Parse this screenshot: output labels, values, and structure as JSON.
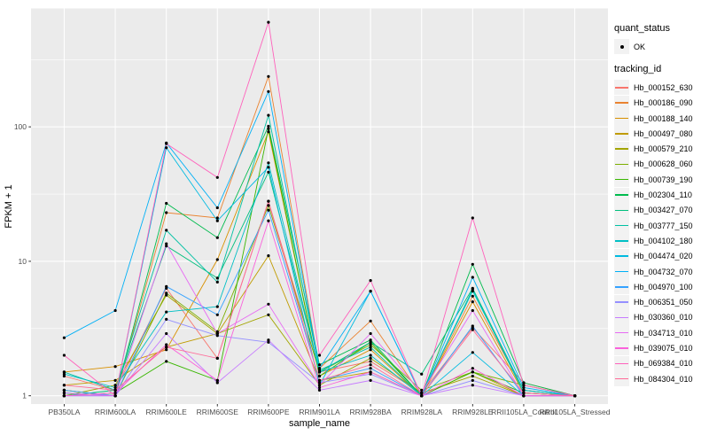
{
  "figure": {
    "background": "#FFFFFF",
    "panel_bg": "#EBEBEB",
    "grid_color": "#FFFFFF",
    "axis_text_color": "#4D4D4D",
    "tick_mark_color": "#333333",
    "legend_key_bg": "#F2F2F2",
    "point_color": "#000000"
  },
  "chart_data": {
    "type": "line",
    "title": "",
    "xlabel": "sample_name",
    "ylabel": "FPKM + 1",
    "y_scale": "log10",
    "grid": true,
    "legend_position": "right",
    "y_tick_labels": [
      "1",
      "10",
      "100"
    ],
    "y_tick_values": [
      1,
      10,
      100
    ],
    "y_minor_values": [
      3.1623,
      31.623,
      316.23
    ],
    "ylim": [
      0.868,
      760
    ],
    "categories": [
      "PB350LA",
      "RRIM600LA",
      "RRIM600LE",
      "RRIM600SE",
      "RRIM600PE",
      "RRIM901LA",
      "RRIM928BA",
      "RRIM928LA",
      "RRIM928LE",
      "RRII105LA_Control",
      "RRII105LA_Stressed"
    ],
    "legend": {
      "quant_status": {
        "title": "quant_status",
        "items": [
          {
            "label": "OK",
            "marker": "filled-point"
          }
        ]
      },
      "tracking_id": {
        "title": "tracking_id"
      }
    },
    "series": [
      {
        "name": "Hb_000152_630",
        "color": "#F8766D",
        "values": [
          1.4,
          1.1,
          6.3,
          1.9,
          28,
          1.5,
          1.8,
          1.05,
          3.2,
          1.25,
          1.0
        ]
      },
      {
        "name": "Hb_000186_090",
        "color": "#EA8331",
        "values": [
          1.1,
          1.0,
          23,
          21,
          237,
          1.6,
          3.6,
          1.0,
          5.5,
          1.1,
          1.0
        ]
      },
      {
        "name": "Hb_000188_140",
        "color": "#D89000",
        "values": [
          1.5,
          1.65,
          2.2,
          10.3,
          92,
          1.4,
          2.2,
          1.0,
          5.0,
          1.05,
          1.0
        ]
      },
      {
        "name": "Hb_000497_080",
        "color": "#C09B00",
        "values": [
          1.2,
          1.3,
          2.3,
          2.9,
          11,
          1.3,
          1.5,
          1.0,
          1.5,
          1.0,
          1.0
        ]
      },
      {
        "name": "Hb_000579_210",
        "color": "#A3A500",
        "values": [
          1.0,
          1.2,
          5.6,
          2.9,
          4.0,
          1.2,
          1.9,
          1.05,
          1.4,
          1.0,
          1.0
        ]
      },
      {
        "name": "Hb_000628_060",
        "color": "#7CAE00",
        "values": [
          1.1,
          1.0,
          5.8,
          3.0,
          26,
          1.5,
          2.4,
          1.1,
          1.5,
          1.2,
          1.0
        ]
      },
      {
        "name": "Hb_000739_190",
        "color": "#39B600",
        "values": [
          1.0,
          1.05,
          1.8,
          1.3,
          97,
          1.4,
          2.5,
          1.0,
          1.5,
          1.05,
          1.0
        ]
      },
      {
        "name": "Hb_002304_110",
        "color": "#00BB4E",
        "values": [
          1.05,
          1.0,
          27,
          15,
          101,
          1.7,
          2.6,
          1.0,
          9.5,
          1.25,
          1.0
        ]
      },
      {
        "name": "Hb_003427_070",
        "color": "#00BF7D",
        "values": [
          1.0,
          1.1,
          13,
          7.5,
          46,
          1.5,
          2.5,
          1.45,
          6.3,
          1.1,
          1.0
        ]
      },
      {
        "name": "Hb_003777_150",
        "color": "#00C1A3",
        "values": [
          1.5,
          1.1,
          17,
          7.0,
          122,
          1.55,
          2.3,
          1.0,
          6.2,
          1.05,
          1.0
        ]
      },
      {
        "name": "Hb_004102_180",
        "color": "#00BFC4",
        "values": [
          1.45,
          1.15,
          4.2,
          4.6,
          54,
          1.5,
          2.0,
          1.0,
          6.0,
          1.1,
          1.0
        ]
      },
      {
        "name": "Hb_004474_020",
        "color": "#00BAE0",
        "values": [
          1.0,
          1.0,
          70,
          20,
          50,
          1.2,
          6.0,
          1.0,
          2.1,
          1.0,
          1.0
        ]
      },
      {
        "name": "Hb_004732_070",
        "color": "#00B0F6",
        "values": [
          2.7,
          4.3,
          76,
          25,
          183,
          1.6,
          6.0,
          1.0,
          7.6,
          1.15,
          1.0
        ]
      },
      {
        "name": "Hb_004970_100",
        "color": "#35A2FF",
        "values": [
          1.1,
          1.0,
          6.5,
          4.0,
          24,
          1.3,
          1.6,
          1.0,
          3.3,
          1.0,
          1.0
        ]
      },
      {
        "name": "Hb_006351_050",
        "color": "#9590FF",
        "values": [
          1.0,
          1.0,
          3.7,
          2.8,
          2.5,
          1.25,
          1.45,
          1.0,
          1.3,
          1.0,
          1.0
        ]
      },
      {
        "name": "Hb_030360_010",
        "color": "#C77CFF",
        "values": [
          1.05,
          1.0,
          2.9,
          1.25,
          2.6,
          1.1,
          1.3,
          1.0,
          1.2,
          1.0,
          1.0
        ]
      },
      {
        "name": "Hb_034713_010",
        "color": "#E76BF3",
        "values": [
          1.0,
          1.0,
          13.5,
          2.9,
          4.8,
          1.2,
          2.9,
          1.05,
          4.3,
          1.0,
          1.0
        ]
      },
      {
        "name": "Hb_039075_010",
        "color": "#FA62DB",
        "values": [
          1.0,
          1.05,
          2.4,
          1.3,
          20,
          1.15,
          1.5,
          1.0,
          1.6,
          1.0,
          1.0
        ]
      },
      {
        "name": "Hb_069384_010",
        "color": "#FF62BC",
        "values": [
          2.0,
          1.0,
          75,
          42,
          600,
          2.0,
          7.2,
          1.0,
          21,
          1.2,
          1.0
        ]
      },
      {
        "name": "Hb_084304_010",
        "color": "#FF6A98",
        "values": [
          1.2,
          1.1,
          2.3,
          1.9,
          28,
          1.3,
          1.7,
          1.0,
          3.1,
          1.05,
          1.0
        ]
      }
    ]
  }
}
